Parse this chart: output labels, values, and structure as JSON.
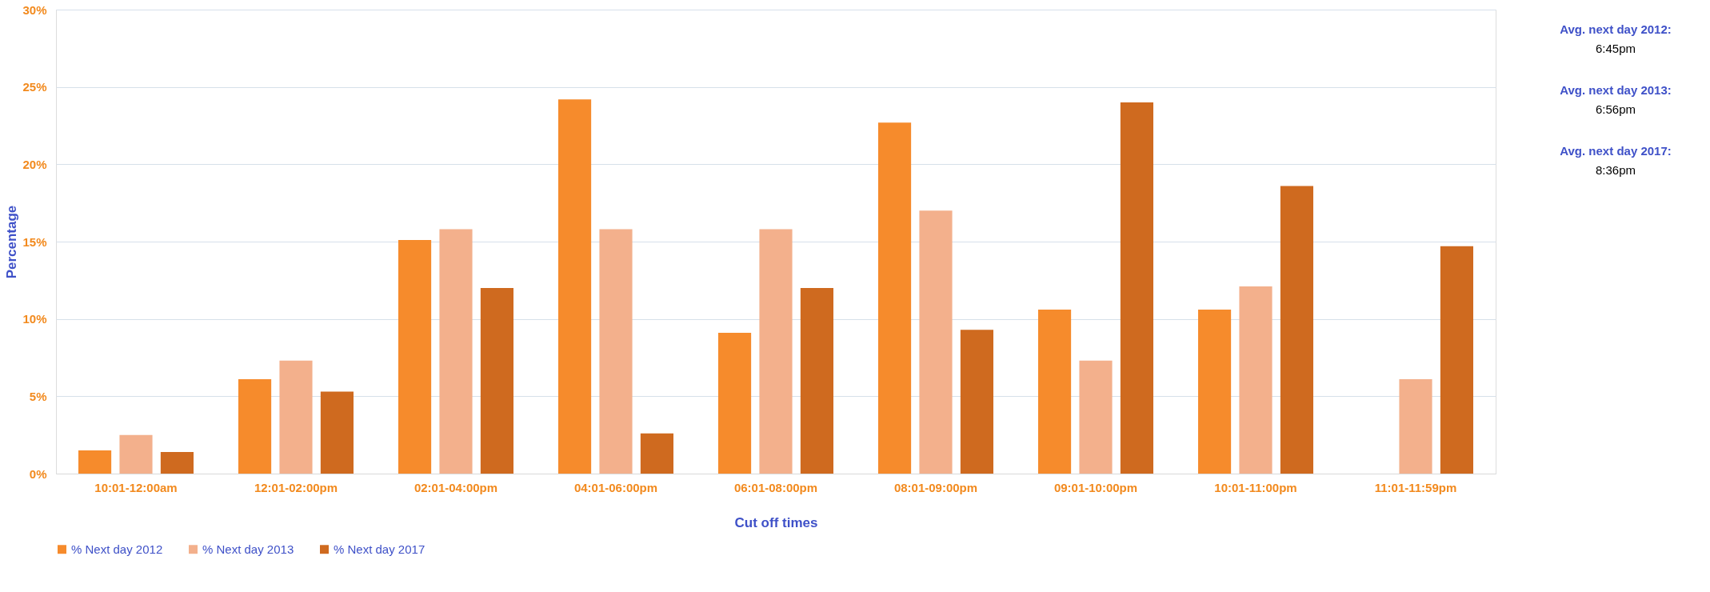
{
  "chart_data": {
    "type": "bar",
    "xlabel": "Cut off times",
    "ylabel": "Percentage",
    "categories": [
      "10:01-12:00am",
      "12:01-02:00pm",
      "02:01-04:00pm",
      "04:01-06:00pm",
      "06:01-08:00pm",
      "08:01-09:00pm",
      "09:01-10:00pm",
      "10:01-11:00pm",
      "11:01-11:59pm"
    ],
    "series": [
      {
        "name": "% Next day 2012",
        "color": "#f68b2c",
        "values": [
          1.5,
          6.1,
          15.1,
          24.2,
          9.1,
          22.7,
          10.6,
          10.6,
          null
        ]
      },
      {
        "name": "% Next day 2013",
        "color": "#f3b08c",
        "values": [
          2.5,
          7.3,
          15.8,
          15.8,
          15.8,
          17.0,
          7.3,
          12.1,
          6.1
        ]
      },
      {
        "name": "% Next day 2017",
        "color": "#cf6a1f",
        "values": [
          1.4,
          5.3,
          12.0,
          2.6,
          12.0,
          9.3,
          24.0,
          18.6,
          14.7
        ]
      }
    ],
    "ylim": [
      0,
      30
    ],
    "yticks": [
      {
        "value": 0,
        "label": "0%"
      },
      {
        "value": 5,
        "label": "5%"
      },
      {
        "value": 10,
        "label": "10%"
      },
      {
        "value": 15,
        "label": "15%"
      },
      {
        "value": 20,
        "label": "20%"
      },
      {
        "value": 25,
        "label": "25%"
      },
      {
        "value": 30,
        "label": "30%"
      }
    ],
    "grid": "y",
    "legend": "bottom",
    "annotations": [
      "Avg. next day 2012:",
      "6:45pm",
      "Avg. next day 2013:",
      "6:56pm",
      "Avg. next day 2017:",
      "8:36pm"
    ]
  }
}
